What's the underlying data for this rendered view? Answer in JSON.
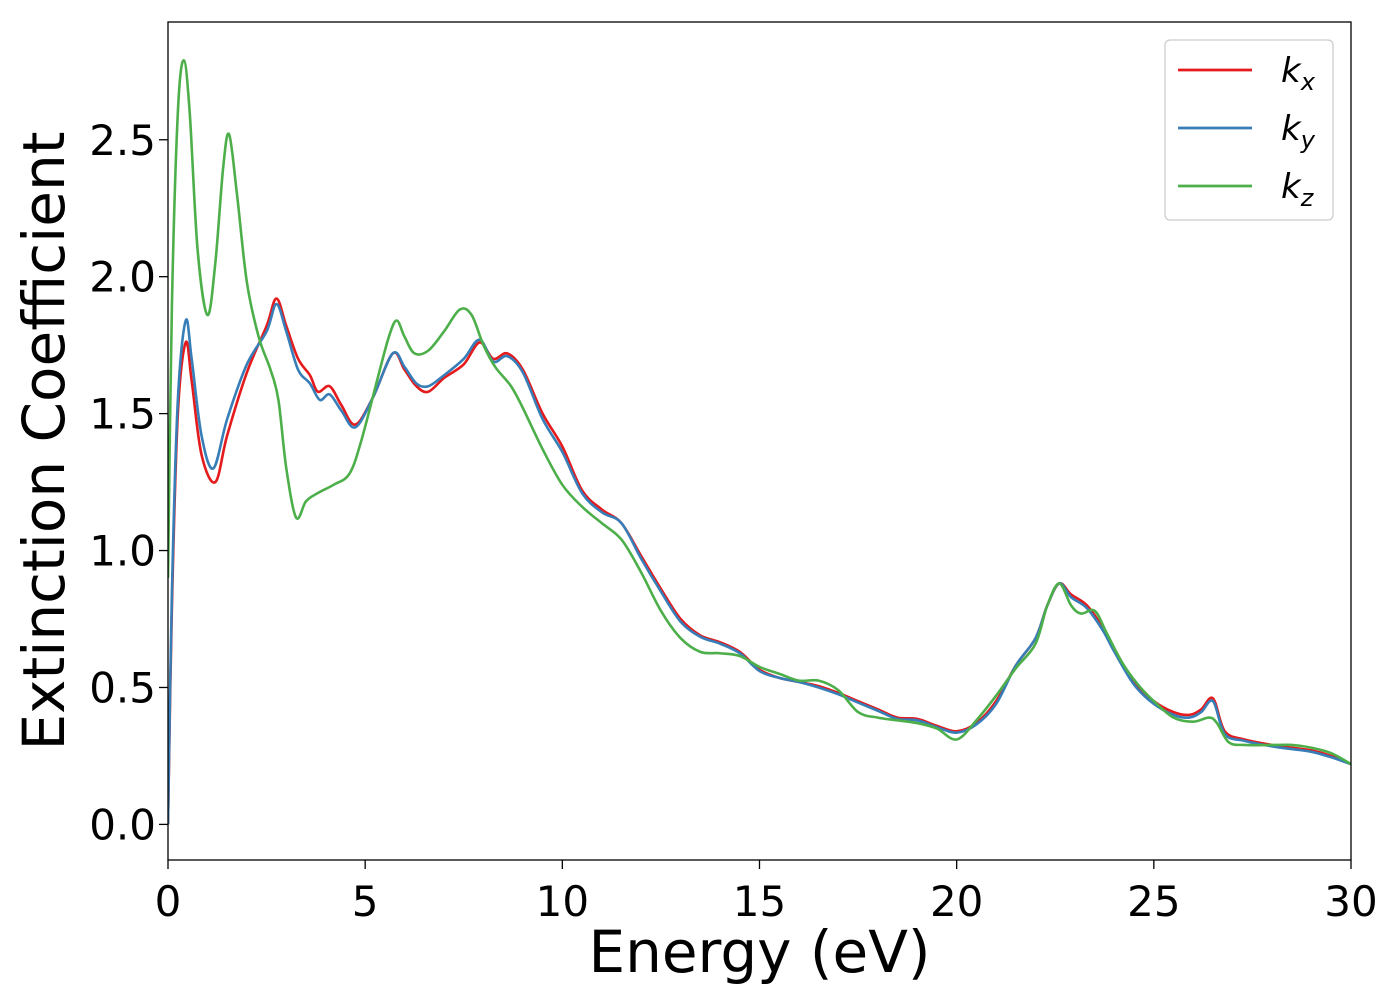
{
  "chart_data": {
    "type": "line",
    "title": "",
    "xlabel": "Energy (eV)",
    "ylabel": "Extinction Coefficient",
    "xlim": [
      0,
      30
    ],
    "ylim": [
      -0.13,
      2.93
    ],
    "xticks": [
      0,
      5,
      10,
      15,
      20,
      25,
      30
    ],
    "xtick_labels": [
      "0",
      "5",
      "10",
      "15",
      "20",
      "25",
      "30"
    ],
    "yticks": [
      0.0,
      0.5,
      1.0,
      1.5,
      2.0,
      2.5
    ],
    "ytick_labels": [
      "0.0",
      "0.5",
      "1.0",
      "1.5",
      "2.0",
      "2.5"
    ],
    "grid": false,
    "legend": {
      "position": "top-right"
    },
    "series": [
      {
        "name": "k",
        "subscript": "x",
        "color": "#e41a1c",
        "points": [
          [
            0,
            0
          ],
          [
            0.1,
            0.8
          ],
          [
            0.25,
            1.5
          ],
          [
            0.45,
            1.76
          ],
          [
            0.6,
            1.62
          ],
          [
            0.85,
            1.35
          ],
          [
            1.2,
            1.25
          ],
          [
            1.5,
            1.42
          ],
          [
            2.0,
            1.65
          ],
          [
            2.5,
            1.82
          ],
          [
            2.75,
            1.92
          ],
          [
            3.0,
            1.82
          ],
          [
            3.3,
            1.7
          ],
          [
            3.6,
            1.64
          ],
          [
            3.8,
            1.58
          ],
          [
            4.1,
            1.6
          ],
          [
            4.4,
            1.53
          ],
          [
            4.75,
            1.46
          ],
          [
            5.2,
            1.56
          ],
          [
            5.7,
            1.72
          ],
          [
            6.0,
            1.66
          ],
          [
            6.3,
            1.6
          ],
          [
            6.6,
            1.58
          ],
          [
            7.0,
            1.63
          ],
          [
            7.5,
            1.68
          ],
          [
            7.9,
            1.76
          ],
          [
            8.25,
            1.7
          ],
          [
            8.6,
            1.72
          ],
          [
            9.0,
            1.66
          ],
          [
            9.5,
            1.5
          ],
          [
            10.0,
            1.38
          ],
          [
            10.5,
            1.22
          ],
          [
            11.0,
            1.15
          ],
          [
            11.5,
            1.1
          ],
          [
            12.0,
            0.98
          ],
          [
            12.5,
            0.86
          ],
          [
            13.0,
            0.75
          ],
          [
            13.5,
            0.69
          ],
          [
            14.0,
            0.665
          ],
          [
            14.5,
            0.63
          ],
          [
            15.0,
            0.565
          ],
          [
            15.5,
            0.535
          ],
          [
            16.0,
            0.52
          ],
          [
            16.5,
            0.505
          ],
          [
            17.0,
            0.48
          ],
          [
            17.5,
            0.45
          ],
          [
            18.0,
            0.42
          ],
          [
            18.5,
            0.39
          ],
          [
            19.0,
            0.385
          ],
          [
            19.5,
            0.36
          ],
          [
            20.0,
            0.34
          ],
          [
            20.5,
            0.37
          ],
          [
            21.0,
            0.45
          ],
          [
            21.5,
            0.58
          ],
          [
            22.0,
            0.68
          ],
          [
            22.3,
            0.8
          ],
          [
            22.6,
            0.88
          ],
          [
            22.9,
            0.84
          ],
          [
            23.3,
            0.8
          ],
          [
            23.7,
            0.72
          ],
          [
            24.0,
            0.64
          ],
          [
            24.5,
            0.52
          ],
          [
            25.0,
            0.45
          ],
          [
            25.5,
            0.41
          ],
          [
            25.9,
            0.4
          ],
          [
            26.2,
            0.42
          ],
          [
            26.5,
            0.46
          ],
          [
            26.8,
            0.34
          ],
          [
            27.3,
            0.31
          ],
          [
            28.0,
            0.29
          ],
          [
            28.5,
            0.28
          ],
          [
            29.0,
            0.27
          ],
          [
            29.5,
            0.25
          ],
          [
            30.0,
            0.22
          ]
        ]
      },
      {
        "name": "k",
        "subscript": "y",
        "color": "#377eb8",
        "points": [
          [
            0,
            0
          ],
          [
            0.1,
            0.85
          ],
          [
            0.25,
            1.55
          ],
          [
            0.45,
            1.84
          ],
          [
            0.6,
            1.7
          ],
          [
            0.85,
            1.42
          ],
          [
            1.15,
            1.3
          ],
          [
            1.5,
            1.48
          ],
          [
            2.0,
            1.68
          ],
          [
            2.5,
            1.8
          ],
          [
            2.75,
            1.9
          ],
          [
            3.0,
            1.8
          ],
          [
            3.3,
            1.66
          ],
          [
            3.6,
            1.61
          ],
          [
            3.85,
            1.55
          ],
          [
            4.1,
            1.57
          ],
          [
            4.4,
            1.51
          ],
          [
            4.75,
            1.45
          ],
          [
            5.2,
            1.56
          ],
          [
            5.7,
            1.72
          ],
          [
            6.0,
            1.67
          ],
          [
            6.3,
            1.61
          ],
          [
            6.6,
            1.6
          ],
          [
            7.0,
            1.64
          ],
          [
            7.5,
            1.7
          ],
          [
            7.9,
            1.77
          ],
          [
            8.25,
            1.69
          ],
          [
            8.6,
            1.71
          ],
          [
            9.0,
            1.65
          ],
          [
            9.5,
            1.48
          ],
          [
            10.0,
            1.36
          ],
          [
            10.5,
            1.21
          ],
          [
            11.0,
            1.14
          ],
          [
            11.5,
            1.1
          ],
          [
            12.0,
            0.97
          ],
          [
            12.5,
            0.85
          ],
          [
            13.0,
            0.74
          ],
          [
            13.5,
            0.685
          ],
          [
            14.0,
            0.66
          ],
          [
            14.5,
            0.625
          ],
          [
            15.0,
            0.56
          ],
          [
            15.5,
            0.535
          ],
          [
            16.0,
            0.52
          ],
          [
            16.5,
            0.5
          ],
          [
            17.0,
            0.475
          ],
          [
            17.5,
            0.445
          ],
          [
            18.0,
            0.415
          ],
          [
            18.5,
            0.385
          ],
          [
            19.0,
            0.38
          ],
          [
            19.5,
            0.355
          ],
          [
            20.0,
            0.335
          ],
          [
            20.5,
            0.365
          ],
          [
            21.0,
            0.44
          ],
          [
            21.5,
            0.58
          ],
          [
            22.0,
            0.68
          ],
          [
            22.3,
            0.8
          ],
          [
            22.6,
            0.88
          ],
          [
            22.9,
            0.83
          ],
          [
            23.3,
            0.79
          ],
          [
            23.7,
            0.71
          ],
          [
            24.0,
            0.63
          ],
          [
            24.5,
            0.51
          ],
          [
            25.0,
            0.44
          ],
          [
            25.5,
            0.4
          ],
          [
            25.9,
            0.39
          ],
          [
            26.2,
            0.41
          ],
          [
            26.5,
            0.45
          ],
          [
            26.8,
            0.33
          ],
          [
            27.3,
            0.305
          ],
          [
            28.0,
            0.285
          ],
          [
            28.5,
            0.275
          ],
          [
            29.0,
            0.265
          ],
          [
            29.5,
            0.245
          ],
          [
            30.0,
            0.22
          ]
        ]
      },
      {
        "name": "k",
        "subscript": "z",
        "color": "#4daf4a",
        "points": [
          [
            0,
            0.9
          ],
          [
            0.1,
            1.9
          ],
          [
            0.25,
            2.6
          ],
          [
            0.4,
            2.79
          ],
          [
            0.55,
            2.6
          ],
          [
            0.75,
            2.1
          ],
          [
            1.0,
            1.86
          ],
          [
            1.2,
            2.05
          ],
          [
            1.4,
            2.4
          ],
          [
            1.55,
            2.52
          ],
          [
            1.75,
            2.3
          ],
          [
            2.0,
            1.98
          ],
          [
            2.3,
            1.78
          ],
          [
            2.6,
            1.66
          ],
          [
            2.8,
            1.55
          ],
          [
            3.0,
            1.3
          ],
          [
            3.25,
            1.12
          ],
          [
            3.5,
            1.18
          ],
          [
            3.8,
            1.21
          ],
          [
            4.2,
            1.24
          ],
          [
            4.6,
            1.28
          ],
          [
            4.9,
            1.4
          ],
          [
            5.3,
            1.62
          ],
          [
            5.6,
            1.78
          ],
          [
            5.8,
            1.84
          ],
          [
            6.0,
            1.78
          ],
          [
            6.25,
            1.72
          ],
          [
            6.6,
            1.73
          ],
          [
            7.0,
            1.8
          ],
          [
            7.4,
            1.88
          ],
          [
            7.7,
            1.86
          ],
          [
            8.0,
            1.75
          ],
          [
            8.3,
            1.67
          ],
          [
            8.7,
            1.6
          ],
          [
            9.0,
            1.52
          ],
          [
            9.5,
            1.37
          ],
          [
            10.0,
            1.24
          ],
          [
            10.5,
            1.16
          ],
          [
            11.0,
            1.1
          ],
          [
            11.5,
            1.04
          ],
          [
            12.0,
            0.92
          ],
          [
            12.5,
            0.78
          ],
          [
            13.0,
            0.68
          ],
          [
            13.5,
            0.63
          ],
          [
            14.0,
            0.625
          ],
          [
            14.5,
            0.615
          ],
          [
            15.0,
            0.575
          ],
          [
            15.5,
            0.55
          ],
          [
            16.0,
            0.525
          ],
          [
            16.5,
            0.525
          ],
          [
            17.0,
            0.49
          ],
          [
            17.5,
            0.41
          ],
          [
            18.0,
            0.39
          ],
          [
            18.5,
            0.38
          ],
          [
            19.0,
            0.37
          ],
          [
            19.5,
            0.35
          ],
          [
            20.0,
            0.31
          ],
          [
            20.5,
            0.38
          ],
          [
            21.0,
            0.47
          ],
          [
            21.5,
            0.57
          ],
          [
            22.0,
            0.66
          ],
          [
            22.3,
            0.8
          ],
          [
            22.6,
            0.88
          ],
          [
            22.9,
            0.8
          ],
          [
            23.15,
            0.77
          ],
          [
            23.5,
            0.78
          ],
          [
            23.8,
            0.7
          ],
          [
            24.2,
            0.59
          ],
          [
            24.6,
            0.51
          ],
          [
            25.0,
            0.45
          ],
          [
            25.5,
            0.39
          ],
          [
            26.0,
            0.375
          ],
          [
            26.4,
            0.39
          ],
          [
            26.6,
            0.37
          ],
          [
            26.9,
            0.3
          ],
          [
            27.3,
            0.29
          ],
          [
            28.0,
            0.29
          ],
          [
            28.5,
            0.29
          ],
          [
            29.0,
            0.28
          ],
          [
            29.5,
            0.26
          ],
          [
            30.0,
            0.22
          ]
        ]
      }
    ]
  }
}
